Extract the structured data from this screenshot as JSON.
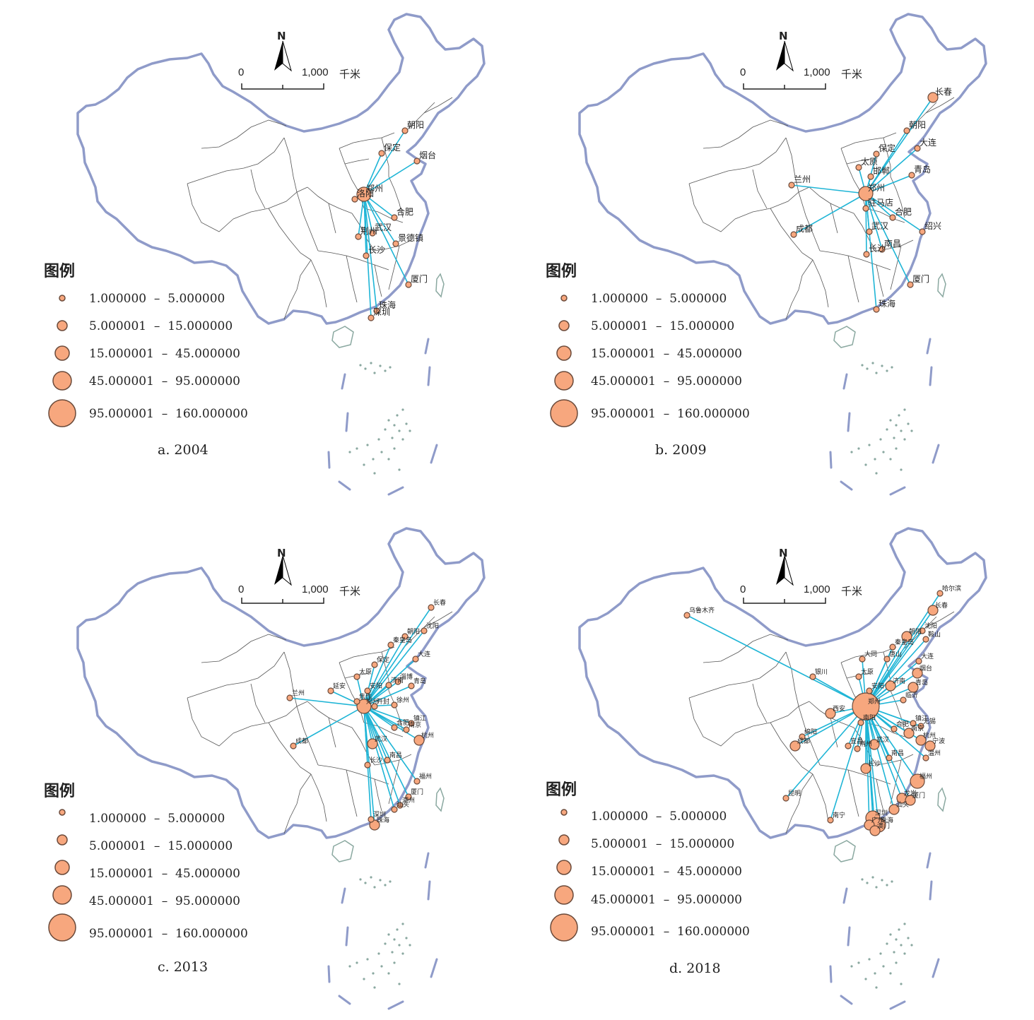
{
  "legend": {
    "title": "图例",
    "classes": [
      "1.000000  –  5.000000",
      "5.000001  –  15.000000",
      "15.000001  –  45.000000",
      "45.000001  –  95.000000",
      "95.000001  –  160.000000"
    ]
  },
  "scale": {
    "zero": "0",
    "end": "1,000",
    "unit": "千米"
  },
  "north": "N",
  "colors": {
    "circle_fill": "#f7a77e",
    "circle_stroke": "#6b4a3a",
    "line": "#1fb5d6",
    "coast": "#8f9bc9",
    "boundary": "#555555",
    "island": "#8aa8a0"
  },
  "panels": [
    {
      "id": "a",
      "caption": "a. 2004",
      "origin": "郑州",
      "cities": [
        {
          "name": "郑州",
          "x": 505,
          "y": 265,
          "s": 3
        },
        {
          "name": "朝阳",
          "x": 563,
          "y": 175,
          "s": 1
        },
        {
          "name": "保定",
          "x": 530,
          "y": 207,
          "s": 1
        },
        {
          "name": "烟台",
          "x": 580,
          "y": 218,
          "s": 1
        },
        {
          "name": "洛阳",
          "x": 492,
          "y": 272,
          "s": 1
        },
        {
          "name": "合肥",
          "x": 548,
          "y": 298,
          "s": 1
        },
        {
          "name": "荆州",
          "x": 497,
          "y": 325,
          "s": 1
        },
        {
          "name": "武汉",
          "x": 517,
          "y": 320,
          "s": 1
        },
        {
          "name": "景德镇",
          "x": 550,
          "y": 335,
          "s": 1
        },
        {
          "name": "长沙",
          "x": 508,
          "y": 352,
          "s": 1
        },
        {
          "name": "厦门",
          "x": 568,
          "y": 393,
          "s": 1
        },
        {
          "name": "珠海",
          "x": 523,
          "y": 430,
          "s": 1
        },
        {
          "name": "深圳",
          "x": 515,
          "y": 440,
          "s": 1
        }
      ]
    },
    {
      "id": "b",
      "caption": "b. 2009",
      "origin": "郑州",
      "cities": [
        {
          "name": "郑州",
          "x": 505,
          "y": 264,
          "s": 3
        },
        {
          "name": "长春",
          "x": 600,
          "y": 128,
          "s": 2
        },
        {
          "name": "朝阳",
          "x": 563,
          "y": 175,
          "s": 1
        },
        {
          "name": "保定",
          "x": 520,
          "y": 208,
          "s": 1
        },
        {
          "name": "大连",
          "x": 578,
          "y": 200,
          "s": 1
        },
        {
          "name": "太原",
          "x": 495,
          "y": 227,
          "s": 1
        },
        {
          "name": "邯郸",
          "x": 512,
          "y": 240,
          "s": 1
        },
        {
          "name": "青岛",
          "x": 570,
          "y": 238,
          "s": 1
        },
        {
          "name": "兰州",
          "x": 400,
          "y": 252,
          "s": 1
        },
        {
          "name": "驻马店",
          "x": 505,
          "y": 285,
          "s": 1
        },
        {
          "name": "合肥",
          "x": 543,
          "y": 298,
          "s": 1
        },
        {
          "name": "绍兴",
          "x": 585,
          "y": 318,
          "s": 1
        },
        {
          "name": "成都",
          "x": 403,
          "y": 322,
          "s": 1
        },
        {
          "name": "武汉",
          "x": 510,
          "y": 318,
          "s": 1
        },
        {
          "name": "南昌",
          "x": 528,
          "y": 343,
          "s": 1
        },
        {
          "name": "长沙",
          "x": 506,
          "y": 350,
          "s": 1
        },
        {
          "name": "厦门",
          "x": 568,
          "y": 393,
          "s": 1
        },
        {
          "name": "珠海",
          "x": 520,
          "y": 428,
          "s": 1
        }
      ]
    },
    {
      "id": "c",
      "caption": "c. 2013",
      "origin": "郑州",
      "cities": [
        {
          "name": "郑州",
          "x": 505,
          "y": 262,
          "s": 3
        },
        {
          "name": "长春",
          "x": 600,
          "y": 122,
          "s": 1
        },
        {
          "name": "沈阳",
          "x": 590,
          "y": 155,
          "s": 1
        },
        {
          "name": "朝阳",
          "x": 563,
          "y": 163,
          "s": 1
        },
        {
          "name": "秦皇岛",
          "x": 543,
          "y": 175,
          "s": 1
        },
        {
          "name": "大连",
          "x": 578,
          "y": 195,
          "s": 1
        },
        {
          "name": "保定",
          "x": 520,
          "y": 203,
          "s": 1
        },
        {
          "name": "太原",
          "x": 495,
          "y": 220,
          "s": 1
        },
        {
          "name": "延安",
          "x": 458,
          "y": 240,
          "s": 1
        },
        {
          "name": "济南",
          "x": 540,
          "y": 232,
          "s": 1
        },
        {
          "name": "淄博",
          "x": 553,
          "y": 227,
          "s": 1
        },
        {
          "name": "青岛",
          "x": 572,
          "y": 233,
          "s": 1
        },
        {
          "name": "兰州",
          "x": 400,
          "y": 250,
          "s": 1
        },
        {
          "name": "安阳",
          "x": 510,
          "y": 240,
          "s": 1
        },
        {
          "name": "焦作",
          "x": 495,
          "y": 255,
          "s": 1
        },
        {
          "name": "开封",
          "x": 520,
          "y": 262,
          "s": 1
        },
        {
          "name": "徐州",
          "x": 548,
          "y": 260,
          "s": 1
        },
        {
          "name": "合肥",
          "x": 548,
          "y": 292,
          "s": 1
        },
        {
          "name": "镇江",
          "x": 572,
          "y": 286,
          "s": 1
        },
        {
          "name": "南京",
          "x": 565,
          "y": 295,
          "s": 1
        },
        {
          "name": "杭州",
          "x": 583,
          "y": 310,
          "s": 2
        },
        {
          "name": "成都",
          "x": 405,
          "y": 318,
          "s": 1
        },
        {
          "name": "武汉",
          "x": 517,
          "y": 315,
          "s": 2
        },
        {
          "name": "南昌",
          "x": 538,
          "y": 338,
          "s": 1
        },
        {
          "name": "长沙",
          "x": 510,
          "y": 345,
          "s": 1
        },
        {
          "name": "福州",
          "x": 580,
          "y": 368,
          "s": 1
        },
        {
          "name": "厦门",
          "x": 568,
          "y": 390,
          "s": 1
        },
        {
          "name": "汕头",
          "x": 548,
          "y": 408,
          "s": 1
        },
        {
          "name": "潮州",
          "x": 556,
          "y": 402,
          "s": 1
        },
        {
          "name": "深圳",
          "x": 515,
          "y": 422,
          "s": 1
        },
        {
          "name": "珠海",
          "x": 520,
          "y": 430,
          "s": 2
        }
      ]
    },
    {
      "id": "d",
      "caption": "d. 2018",
      "origin": "郑州",
      "cities": [
        {
          "name": "郑州",
          "x": 505,
          "y": 262,
          "s": 5
        },
        {
          "name": "哈尔滨",
          "x": 610,
          "y": 102,
          "s": 1
        },
        {
          "name": "长春",
          "x": 600,
          "y": 126,
          "s": 2
        },
        {
          "name": "乌鲁木齐",
          "x": 252,
          "y": 133,
          "s": 1
        },
        {
          "name": "朝阳",
          "x": 563,
          "y": 163,
          "s": 2
        },
        {
          "name": "沈阳",
          "x": 585,
          "y": 155,
          "s": 1
        },
        {
          "name": "鞍山",
          "x": 590,
          "y": 167,
          "s": 1
        },
        {
          "name": "秦皇岛",
          "x": 543,
          "y": 178,
          "s": 1
        },
        {
          "name": "大同",
          "x": 500,
          "y": 195,
          "s": 1
        },
        {
          "name": "唐山",
          "x": 535,
          "y": 195,
          "s": 1
        },
        {
          "name": "大连",
          "x": 580,
          "y": 198,
          "s": 1
        },
        {
          "name": "烟台",
          "x": 578,
          "y": 215,
          "s": 2
        },
        {
          "name": "太原",
          "x": 495,
          "y": 220,
          "s": 1
        },
        {
          "name": "银川",
          "x": 430,
          "y": 220,
          "s": 1
        },
        {
          "name": "济南",
          "x": 540,
          "y": 233,
          "s": 2
        },
        {
          "name": "青岛",
          "x": 572,
          "y": 235,
          "s": 2
        },
        {
          "name": "安阳",
          "x": 510,
          "y": 240,
          "s": 1
        },
        {
          "name": "临沂",
          "x": 558,
          "y": 253,
          "s": 1
        },
        {
          "name": "西安",
          "x": 455,
          "y": 272,
          "s": 2
        },
        {
          "name": "南阳",
          "x": 498,
          "y": 285,
          "s": 1
        },
        {
          "name": "镇江",
          "x": 572,
          "y": 286,
          "s": 1
        },
        {
          "name": "无锡",
          "x": 583,
          "y": 290,
          "s": 1
        },
        {
          "name": "合肥",
          "x": 545,
          "y": 294,
          "s": 1
        },
        {
          "name": "南京",
          "x": 566,
          "y": 300,
          "s": 2
        },
        {
          "name": "杭州",
          "x": 583,
          "y": 310,
          "s": 2
        },
        {
          "name": "绵阳",
          "x": 415,
          "y": 305,
          "s": 1
        },
        {
          "name": "成都",
          "x": 405,
          "y": 318,
          "s": 2
        },
        {
          "name": "宜昌",
          "x": 480,
          "y": 318,
          "s": 1
        },
        {
          "name": "荆州",
          "x": 493,
          "y": 322,
          "s": 1
        },
        {
          "name": "武汉",
          "x": 517,
          "y": 316,
          "s": 2
        },
        {
          "name": "宁波",
          "x": 596,
          "y": 318,
          "s": 2
        },
        {
          "name": "南昌",
          "x": 538,
          "y": 335,
          "s": 1
        },
        {
          "name": "温州",
          "x": 590,
          "y": 335,
          "s": 1
        },
        {
          "name": "长沙",
          "x": 505,
          "y": 350,
          "s": 2
        },
        {
          "name": "福州",
          "x": 578,
          "y": 368,
          "s": 3
        },
        {
          "name": "昆明",
          "x": 392,
          "y": 392,
          "s": 1
        },
        {
          "name": "龙岩",
          "x": 556,
          "y": 392,
          "s": 2
        },
        {
          "name": "厦门",
          "x": 568,
          "y": 395,
          "s": 2
        },
        {
          "name": "汕头",
          "x": 545,
          "y": 408,
          "s": 2
        },
        {
          "name": "南宁",
          "x": 455,
          "y": 423,
          "s": 1
        },
        {
          "name": "深圳",
          "x": 515,
          "y": 420,
          "s": 3
        },
        {
          "name": "珠海",
          "x": 523,
          "y": 430,
          "s": 3
        },
        {
          "name": "广州",
          "x": 510,
          "y": 430,
          "s": 2
        },
        {
          "name": "澳门",
          "x": 518,
          "y": 438,
          "s": 2
        }
      ]
    }
  ]
}
